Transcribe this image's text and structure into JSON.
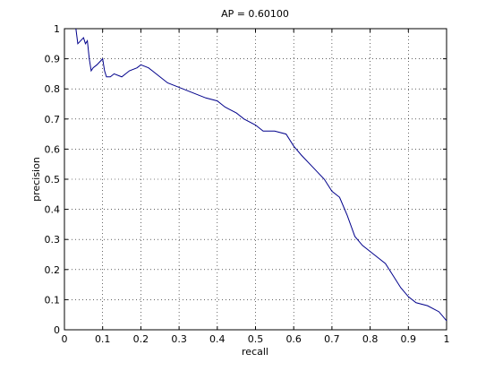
{
  "chart_data": {
    "type": "line",
    "title": "AP = 0.60100",
    "xlabel": "recall",
    "ylabel": "precision",
    "x": [
      0.03,
      0.035,
      0.05,
      0.055,
      0.06,
      0.065,
      0.07,
      0.075,
      0.085,
      0.1,
      0.105,
      0.11,
      0.12,
      0.13,
      0.15,
      0.17,
      0.19,
      0.2,
      0.22,
      0.23,
      0.25,
      0.27,
      0.29,
      0.31,
      0.33,
      0.35,
      0.37,
      0.4,
      0.42,
      0.45,
      0.47,
      0.5,
      0.52,
      0.55,
      0.58,
      0.6,
      0.62,
      0.65,
      0.68,
      0.7,
      0.72,
      0.74,
      0.76,
      0.78,
      0.8,
      0.82,
      0.84,
      0.86,
      0.88,
      0.9,
      0.92,
      0.95,
      0.98,
      1.0
    ],
    "values": [
      1.0,
      0.95,
      0.97,
      0.95,
      0.96,
      0.9,
      0.86,
      0.87,
      0.88,
      0.9,
      0.86,
      0.84,
      0.84,
      0.85,
      0.84,
      0.86,
      0.87,
      0.88,
      0.87,
      0.86,
      0.84,
      0.82,
      0.81,
      0.8,
      0.79,
      0.78,
      0.77,
      0.76,
      0.74,
      0.72,
      0.7,
      0.68,
      0.66,
      0.66,
      0.65,
      0.61,
      0.58,
      0.54,
      0.5,
      0.46,
      0.44,
      0.38,
      0.31,
      0.28,
      0.26,
      0.24,
      0.22,
      0.18,
      0.14,
      0.11,
      0.09,
      0.08,
      0.06,
      0.03
    ],
    "color": "#00008b",
    "xlim": [
      0,
      1
    ],
    "ylim": [
      0,
      1
    ],
    "xticks": [
      0,
      0.1,
      0.2,
      0.3,
      0.4,
      0.5,
      0.6,
      0.7,
      0.8,
      0.9,
      1
    ],
    "yticks": [
      0,
      0.1,
      0.2,
      0.3,
      0.4,
      0.5,
      0.6,
      0.7,
      0.8,
      0.9,
      1
    ],
    "grid": true
  }
}
